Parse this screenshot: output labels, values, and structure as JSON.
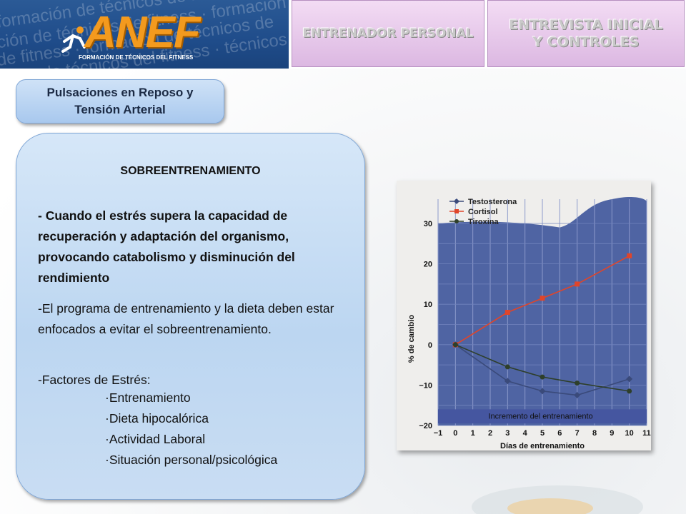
{
  "header": {
    "background_text": [
      "formación de técnicos de fitness",
      "ción de técnicos de fitness · formación",
      "de fitness · formación de técnicos de",
      "ación de técnicos del fitness · técnicos"
    ],
    "logo_text": "ANEF",
    "logo_subtitle": "FORMACIÓN DE TÉCNICOS DEL FITNESS",
    "nav_buttons": [
      "ENTRENADOR PERSONAL",
      "ENTREVISTA INICIAL Y CONTROLES"
    ]
  },
  "section_title": "Pulsaciones en Reposo y Tensión Arterial",
  "card": {
    "title": "SOBREENTRENAMIENTO",
    "para1": "- Cuando el estrés supera la capacidad de recuperación y adaptación del organismo, provocando catabolismo y disminución del rendimiento",
    "para2": "-El programa de entrenamiento y la dieta deben estar enfocados a evitar el sobreentrenamiento.",
    "para3": "-Factores de Estrés:",
    "factors": [
      "·Entrenamiento",
      "·Dieta hipocalórica",
      "·Actividad Laboral",
      "·Situación personal/psicológica"
    ]
  },
  "chart_data": {
    "type": "line",
    "xlabel": "Días de entrenamiento",
    "ylabel": "% de cambio",
    "x_ticks": [
      -1,
      0,
      1,
      2,
      3,
      4,
      5,
      6,
      7,
      8,
      9,
      10,
      11
    ],
    "y_ticks": [
      -20,
      -10,
      0,
      10,
      20,
      30
    ],
    "xlim": [
      -1,
      11
    ],
    "ylim": [
      -20,
      30
    ],
    "annotation": "Incremento del entrenamiento",
    "series": [
      {
        "name": "Testosterona",
        "color": "#3a4a7a",
        "marker": "diamond",
        "x": [
          0,
          3,
          5,
          7,
          10
        ],
        "y": [
          0,
          -9,
          -11.5,
          -12.5,
          -8.5
        ]
      },
      {
        "name": "Cortisol",
        "color": "#e0452a",
        "marker": "square",
        "x": [
          0,
          3,
          5,
          7,
          10
        ],
        "y": [
          0,
          8,
          11.5,
          15,
          22
        ]
      },
      {
        "name": "Tiroxina",
        "color": "#2e3f2a",
        "marker": "circle",
        "x": [
          0,
          3,
          5,
          7,
          10
        ],
        "y": [
          0,
          -5.5,
          -8,
          -9.5,
          -11.5
        ]
      }
    ]
  }
}
